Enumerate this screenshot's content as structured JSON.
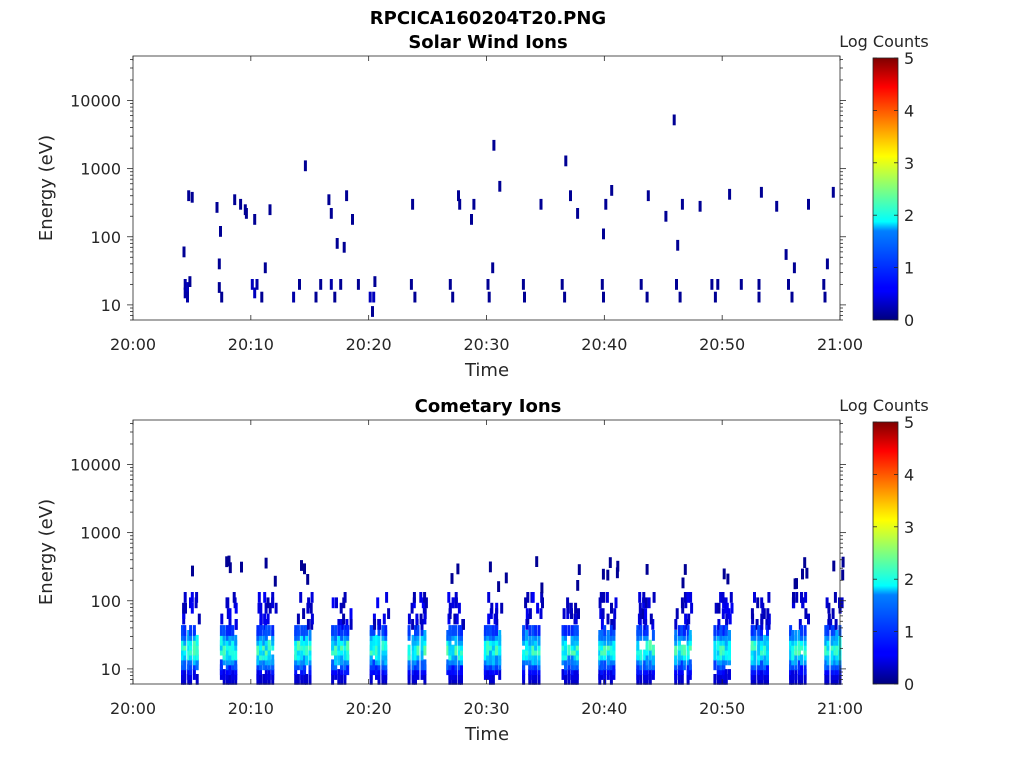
{
  "figure_title": "RPCICA160204T20.PNG",
  "colors": {
    "text": "#262626",
    "axis": "#262626",
    "background": "#ffffff"
  },
  "chart_data": [
    {
      "type": "heatmap",
      "title": "Solar Wind Ions",
      "xlabel": "Time",
      "ylabel": "Energy (eV)",
      "y_scale": "log",
      "x_range": [
        "20:00",
        "21:00"
      ],
      "x_ticks": [
        "20:00",
        "20:10",
        "20:20",
        "20:30",
        "20:40",
        "20:50",
        "21:00"
      ],
      "ylim": [
        6,
        45000
      ],
      "y_ticks": [
        10,
        100,
        1000,
        10000
      ],
      "y_tick_labels": [
        "10",
        "100",
        "1000",
        "10000"
      ],
      "colorbar": {
        "label": "Log Counts",
        "min": 0,
        "max": 5,
        "ticks": [
          "0",
          "1",
          "2",
          "3",
          "4",
          "5"
        ],
        "colormap": "jet"
      },
      "grid": false,
      "points": [
        [
          4.3,
          20,
          0.2
        ],
        [
          4.3,
          15,
          0.2
        ],
        [
          4.5,
          18,
          0.3
        ],
        [
          4.5,
          13,
          0.2
        ],
        [
          4.7,
          22,
          0.1
        ],
        [
          4.2,
          60,
          0.1
        ],
        [
          4.6,
          400,
          0.1
        ],
        [
          4.9,
          380,
          0.1
        ],
        [
          7.2,
          18,
          0.1
        ],
        [
          7.4,
          13,
          0.1
        ],
        [
          7.2,
          40,
          0.1
        ],
        [
          7.0,
          270,
          0.1
        ],
        [
          7.3,
          120,
          0.1
        ],
        [
          8.5,
          350,
          0.1
        ],
        [
          9.0,
          300,
          0.1
        ],
        [
          9.5,
          220,
          0.1
        ],
        [
          9.4,
          250,
          0.1
        ],
        [
          10.0,
          20,
          0.3
        ],
        [
          10.2,
          15,
          0.3
        ],
        [
          10.4,
          20,
          0.2
        ],
        [
          10.2,
          180,
          0.1
        ],
        [
          10.8,
          13,
          0.1
        ],
        [
          11.1,
          35,
          0.1
        ],
        [
          11.5,
          250,
          0.1
        ],
        [
          13.5,
          13,
          0.2
        ],
        [
          14.0,
          20,
          0.1
        ],
        [
          14.5,
          1100,
          0.1
        ],
        [
          15.4,
          13,
          0.1
        ],
        [
          15.8,
          20,
          0.1
        ],
        [
          16.5,
          350,
          0.1
        ],
        [
          16.7,
          220,
          0.1
        ],
        [
          16.7,
          20,
          0.2
        ],
        [
          17.0,
          13,
          0.1
        ],
        [
          17.2,
          80,
          0.1
        ],
        [
          17.5,
          20,
          0.1
        ],
        [
          17.8,
          70,
          0.1
        ],
        [
          18.0,
          400,
          0.1
        ],
        [
          18.5,
          180,
          0.1
        ],
        [
          19.0,
          20,
          0.1
        ],
        [
          20.0,
          13,
          0.3
        ],
        [
          20.3,
          13,
          0.3
        ],
        [
          20.4,
          22,
          0.1
        ],
        [
          20.2,
          8,
          0.1
        ],
        [
          23.5,
          20,
          0.1
        ],
        [
          23.8,
          13,
          0.1
        ],
        [
          23.6,
          300,
          0.1
        ],
        [
          26.8,
          20,
          0.1
        ],
        [
          27.0,
          13,
          0.1
        ],
        [
          27.5,
          400,
          0.1
        ],
        [
          27.6,
          300,
          0.1
        ],
        [
          28.6,
          180,
          0.1
        ],
        [
          28.8,
          300,
          0.1
        ],
        [
          30.0,
          20,
          0.1
        ],
        [
          30.1,
          13,
          0.1
        ],
        [
          30.4,
          35,
          0.1
        ],
        [
          30.5,
          2200,
          0.1
        ],
        [
          31.0,
          550,
          0.1
        ],
        [
          33.0,
          20,
          0.1
        ],
        [
          33.1,
          13,
          0.1
        ],
        [
          34.5,
          300,
          0.1
        ],
        [
          36.3,
          20,
          0.1
        ],
        [
          36.5,
          13,
          0.1
        ],
        [
          36.6,
          1300,
          0.1
        ],
        [
          37.0,
          400,
          0.1
        ],
        [
          37.6,
          220,
          0.1
        ],
        [
          39.7,
          20,
          0.1
        ],
        [
          39.8,
          13,
          0.1
        ],
        [
          39.8,
          110,
          0.1
        ],
        [
          40.0,
          300,
          0.1
        ],
        [
          40.5,
          480,
          0.1
        ],
        [
          43.0,
          20,
          0.1
        ],
        [
          43.5,
          13,
          0.1
        ],
        [
          43.6,
          400,
          0.1
        ],
        [
          45.1,
          200,
          0.1
        ],
        [
          45.8,
          5200,
          0.1
        ],
        [
          46.0,
          20,
          0.1
        ],
        [
          46.3,
          13,
          0.1
        ],
        [
          46.1,
          75,
          0.1
        ],
        [
          46.5,
          300,
          0.1
        ],
        [
          48.0,
          280,
          0.1
        ],
        [
          49.0,
          20,
          0.1
        ],
        [
          49.3,
          13,
          0.1
        ],
        [
          49.5,
          20,
          0.1
        ],
        [
          50.5,
          420,
          0.1
        ],
        [
          51.5,
          20,
          0.1
        ],
        [
          53.0,
          20,
          0.1
        ],
        [
          53.2,
          450,
          0.1
        ],
        [
          53.0,
          13,
          0.1
        ],
        [
          54.5,
          280,
          0.1
        ],
        [
          55.3,
          55,
          0.1
        ],
        [
          55.5,
          20,
          0.1
        ],
        [
          55.8,
          13,
          0.1
        ],
        [
          56.0,
          35,
          0.1
        ],
        [
          57.2,
          300,
          0.1
        ],
        [
          58.5,
          20,
          0.1
        ],
        [
          58.6,
          13,
          0.1
        ],
        [
          58.8,
          40,
          0.1
        ],
        [
          59.3,
          450,
          0.1
        ]
      ]
    },
    {
      "type": "heatmap",
      "title": "Cometary Ions",
      "xlabel": "Time",
      "ylabel": "Energy (eV)",
      "y_scale": "log",
      "x_range": [
        "20:00",
        "21:00"
      ],
      "x_ticks": [
        "20:00",
        "20:10",
        "20:20",
        "20:30",
        "20:40",
        "20:50",
        "21:00"
      ],
      "ylim": [
        6,
        45000
      ],
      "y_ticks": [
        10,
        100,
        1000,
        10000
      ],
      "y_tick_labels": [
        "10",
        "100",
        "1000",
        "10000"
      ],
      "colorbar": {
        "label": "Log Counts",
        "min": 0,
        "max": 5,
        "ticks": [
          "0",
          "1",
          "2",
          "3",
          "4",
          "5"
        ],
        "colormap": "jet"
      },
      "grid": false,
      "points": []
    }
  ]
}
